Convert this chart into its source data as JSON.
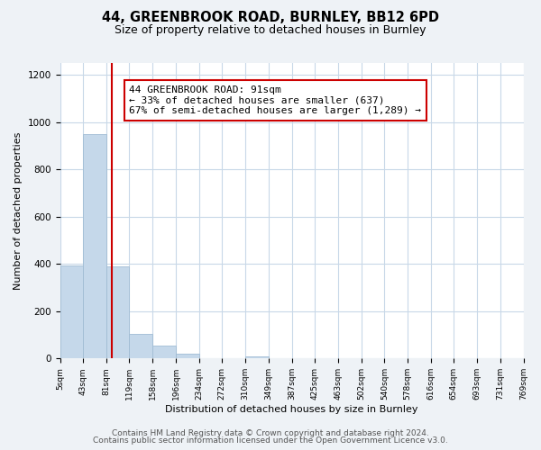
{
  "title_line1": "44, GREENBROOK ROAD, BURNLEY, BB12 6PD",
  "title_line2": "Size of property relative to detached houses in Burnley",
  "xlabel": "Distribution of detached houses by size in Burnley",
  "ylabel": "Number of detached properties",
  "bar_edges": [
    5,
    43,
    81,
    119,
    158,
    196,
    234,
    272,
    310,
    349,
    387,
    425,
    463,
    502,
    540,
    578,
    616,
    654,
    693,
    731,
    769
  ],
  "bar_heights": [
    395,
    950,
    390,
    105,
    53,
    20,
    0,
    0,
    10,
    0,
    0,
    0,
    0,
    0,
    0,
    0,
    0,
    0,
    0,
    0
  ],
  "bar_color": "#c5d8ea",
  "bar_edgecolor": "#a0bcd4",
  "property_value": 91,
  "vline_color": "#cc0000",
  "annotation_line1": "44 GREENBROOK ROAD: 91sqm",
  "annotation_line2": "← 33% of detached houses are smaller (637)",
  "annotation_line3": "67% of semi-detached houses are larger (1,289) →",
  "annotation_box_edgecolor": "#cc0000",
  "annotation_box_facecolor": "#ffffff",
  "ylim": [
    0,
    1250
  ],
  "yticks": [
    0,
    200,
    400,
    600,
    800,
    1000,
    1200
  ],
  "tick_labels": [
    "5sqm",
    "43sqm",
    "81sqm",
    "119sqm",
    "158sqm",
    "196sqm",
    "234sqm",
    "272sqm",
    "310sqm",
    "349sqm",
    "387sqm",
    "425sqm",
    "463sqm",
    "502sqm",
    "540sqm",
    "578sqm",
    "616sqm",
    "654sqm",
    "693sqm",
    "731sqm",
    "769sqm"
  ],
  "footer_line1": "Contains HM Land Registry data © Crown copyright and database right 2024.",
  "footer_line2": "Contains public sector information licensed under the Open Government Licence v3.0.",
  "background_color": "#eef2f6",
  "plot_background_color": "#ffffff",
  "grid_color": "#c8d8e8",
  "title_fontsize": 10.5,
  "subtitle_fontsize": 9,
  "footer_fontsize": 6.5,
  "annotation_fontsize": 8,
  "axis_label_fontsize": 8,
  "tick_fontsize": 6.5,
  "ytick_fontsize": 7.5
}
